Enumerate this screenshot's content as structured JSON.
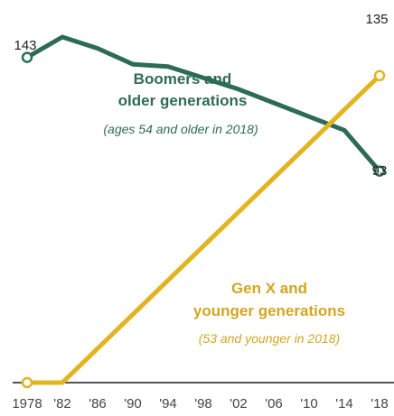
{
  "chart_data": {
    "type": "line",
    "title": "",
    "xlabel": "",
    "ylabel": "",
    "x": [
      1978,
      1982,
      1986,
      1990,
      1994,
      1998,
      2002,
      2006,
      2010,
      2014,
      2018
    ],
    "x_tick_labels": [
      "1978",
      "'82",
      "'86",
      "'90",
      "'94",
      "'98",
      "'02",
      "'06",
      "'10",
      "'14",
      "'18"
    ],
    "ylim": [
      0,
      160
    ],
    "grid": false,
    "legend": "inline",
    "series": [
      {
        "name": "Boomers and older generations",
        "note": "(ages 54 and older in 2018)",
        "color": "#2e6b57",
        "values": [
          143,
          152,
          147,
          140,
          139,
          134,
          129,
          123,
          117,
          111,
          93
        ],
        "start_label": "143",
        "end_label": "93"
      },
      {
        "name": "Gen X and younger generations",
        "note": "(53 and younger in 2018)",
        "color": "#e2b41f",
        "values": [
          0,
          0,
          15,
          30,
          45,
          60,
          75,
          90,
          105,
          120,
          135
        ],
        "end_label": "135"
      }
    ]
  }
}
